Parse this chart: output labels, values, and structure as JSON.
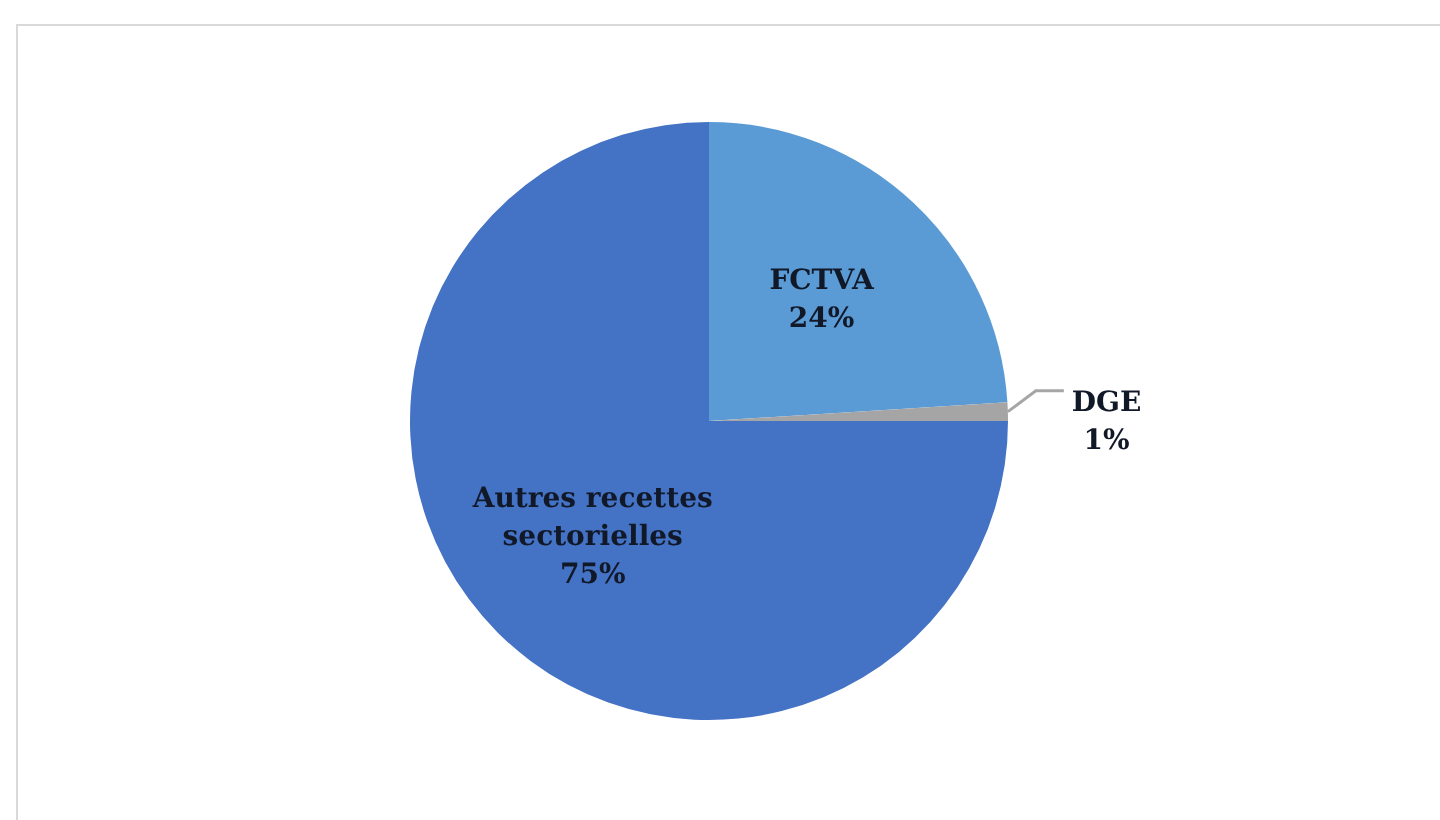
{
  "chart_data": {
    "type": "pie",
    "categories": [
      "FCTVA",
      "DGE",
      "Autres recettes sectorielles"
    ],
    "values": [
      24,
      1,
      75
    ],
    "colors": [
      "#5b9bd5",
      "#a5a5a5",
      "#4472c4"
    ],
    "value_labels": [
      "24%",
      "1%",
      "75%"
    ],
    "legend": false
  }
}
